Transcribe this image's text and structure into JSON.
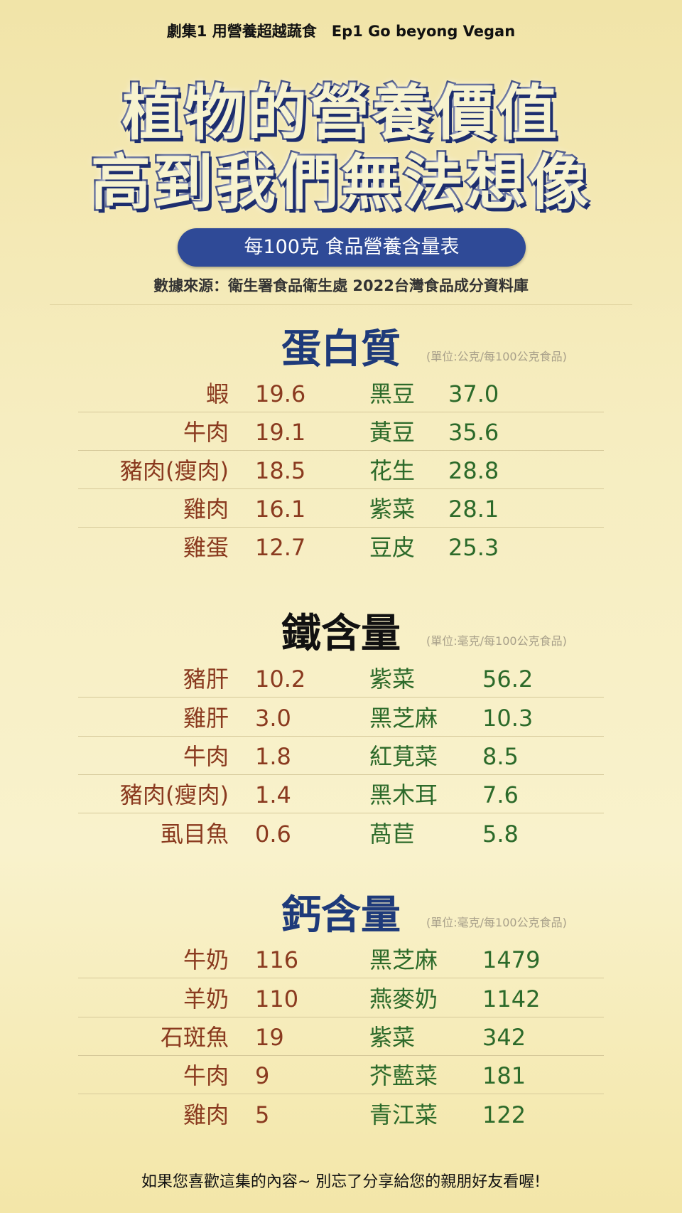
{
  "header": {
    "episode": "劇集1 用營養超越蔬食　Ep1 Go beyong Vegan",
    "title_line1": "植物的營養價值",
    "title_line2": "高到我們無法想像",
    "table_label": "每100克  食品營養含量表",
    "source": "數據來源：衛生署食品衛生處 2022台灣食品成分資料庫"
  },
  "colors": {
    "animal": "#8a3a1f",
    "plant": "#2c6a2a",
    "heading_blue": "#1e3a7a",
    "pill": "#2f4a97"
  },
  "sections": [
    {
      "title": "蛋白質",
      "unit": "(單位:公克/每100公克食品)",
      "rows": [
        {
          "animal": "蝦",
          "animal_value": "19.6",
          "plant": "黑豆",
          "plant_value": "37.0"
        },
        {
          "animal": "牛肉",
          "animal_value": "19.1",
          "plant": "黃豆",
          "plant_value": "35.6"
        },
        {
          "animal": "豬肉(瘦肉)",
          "animal_value": "18.5",
          "plant": "花生",
          "plant_value": "28.8"
        },
        {
          "animal": "雞肉",
          "animal_value": "16.1",
          "plant": "紫菜",
          "plant_value": "28.1"
        },
        {
          "animal": "雞蛋",
          "animal_value": "12.7",
          "plant": "豆皮",
          "plant_value": "25.3"
        }
      ]
    },
    {
      "title": "鐵含量",
      "unit": "(單位:毫克/每100公克食品)",
      "rows": [
        {
          "animal": "豬肝",
          "animal_value": "10.2",
          "plant": "紫菜",
          "plant_value": "56.2"
        },
        {
          "animal": "雞肝",
          "animal_value": "3.0",
          "plant": "黑芝麻",
          "plant_value": "10.3"
        },
        {
          "animal": "牛肉",
          "animal_value": "1.8",
          "plant": "紅莧菜",
          "plant_value": "8.5"
        },
        {
          "animal": "豬肉(瘦肉)",
          "animal_value": "1.4",
          "plant": "黑木耳",
          "plant_value": "7.6"
        },
        {
          "animal": "虱目魚",
          "animal_value": "0.6",
          "plant": "萵苣",
          "plant_value": "5.8"
        }
      ]
    },
    {
      "title": "鈣含量",
      "unit": "(單位:毫克/每100公克食品)",
      "rows": [
        {
          "animal": "牛奶",
          "animal_value": "116",
          "plant": "黑芝麻",
          "plant_value": "1479"
        },
        {
          "animal": "羊奶",
          "animal_value": "110",
          "plant": "燕麥奶",
          "plant_value": "1142"
        },
        {
          "animal": "石斑魚",
          "animal_value": "19",
          "plant": "紫菜",
          "plant_value": "342"
        },
        {
          "animal": "牛肉",
          "animal_value": "9",
          "plant": "芥藍菜",
          "plant_value": "181"
        },
        {
          "animal": "雞肉",
          "animal_value": "5",
          "plant": "青江菜",
          "plant_value": "122"
        }
      ]
    }
  ],
  "footer": "如果您喜歡這集的內容~ 別忘了分享給您的親朋好友看喔!"
}
